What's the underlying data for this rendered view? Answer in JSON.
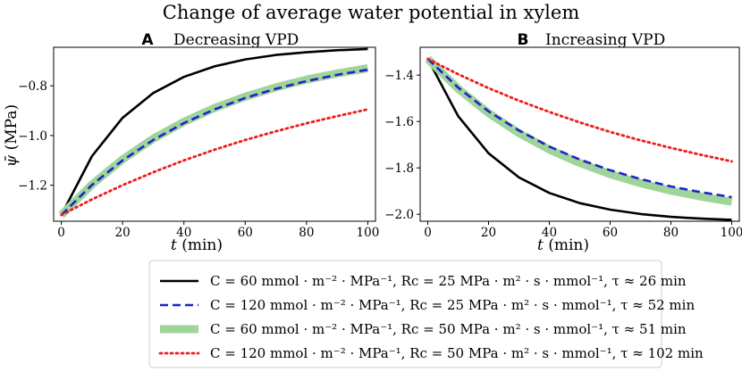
{
  "figure": {
    "title": "Change of average water potential in xylem"
  },
  "legend_entries": [
    {
      "id": "s1",
      "label": "C = 60 mmol · m⁻² · MPa⁻¹, Rc = 25 MPa · m² · s · mmol⁻¹, τ ≈ 26 min",
      "color": "#000000",
      "style": "solid"
    },
    {
      "id": "s2",
      "label": "C = 120 mmol · m⁻² · MPa⁻¹, Rc = 25 MPa · m² · s · mmol⁻¹, τ ≈ 52 min",
      "color": "#1f22c9",
      "style": "dashed"
    },
    {
      "id": "s3",
      "label": "C = 60 mmol · m⁻² · MPa⁻¹, Rc = 50 MPa · m² · s · mmol⁻¹, τ ≈ 51 min",
      "color": "#9fd49a",
      "style": "thick"
    },
    {
      "id": "s4",
      "label": "C = 120 mmol · m⁻² · MPa⁻¹, Rc = 50 MPa · m² · s · mmol⁻¹, τ ≈ 102 min",
      "color": "#ee1c1c",
      "style": "dotted"
    }
  ],
  "chart_data": [
    {
      "type": "line",
      "panel_letter": "A",
      "title": "Decreasing VPD",
      "xlabel": "t (min)",
      "ylabel": "ψ̄ (MPa)",
      "xlim": [
        -2.5,
        102.5
      ],
      "ylim": [
        -1.345,
        -0.645
      ],
      "xticks": [
        0,
        20,
        40,
        60,
        80,
        100
      ],
      "yticks": [
        -1.2,
        -1.0,
        -0.8
      ],
      "xtick_labels": [
        "0",
        "20",
        "40",
        "60",
        "80",
        "100"
      ],
      "ytick_labels": [
        "−1.2",
        "−1.0",
        "−0.8"
      ],
      "x": [
        0,
        10,
        20,
        30,
        40,
        50,
        60,
        70,
        80,
        90,
        100
      ],
      "series": [
        {
          "id": "s1",
          "name": "τ ≈ 26 min",
          "values": [
            -1.32,
            -1.083,
            -0.929,
            -0.829,
            -0.764,
            -0.722,
            -0.694,
            -0.676,
            -0.665,
            -0.657,
            -0.652
          ]
        },
        {
          "id": "s3",
          "name": "τ ≈ 51 min",
          "values": [
            -1.32,
            -1.197,
            -1.096,
            -1.013,
            -0.945,
            -0.889,
            -0.844,
            -0.806,
            -0.775,
            -0.75,
            -0.729
          ]
        },
        {
          "id": "s2",
          "name": "τ ≈ 52 min",
          "values": [
            -1.32,
            -1.199,
            -1.1,
            -1.018,
            -0.95,
            -0.895,
            -0.849,
            -0.812,
            -0.781,
            -0.756,
            -0.735
          ]
        },
        {
          "id": "s4",
          "name": "τ ≈ 102 min",
          "values": [
            -1.32,
            -1.257,
            -1.2,
            -1.148,
            -1.1,
            -1.057,
            -1.018,
            -0.983,
            -0.951,
            -0.922,
            -0.895
          ]
        }
      ]
    },
    {
      "type": "line",
      "panel_letter": "B",
      "title": "Increasing VPD",
      "xlabel": "t (min)",
      "ylabel": "",
      "xlim": [
        -2.5,
        102.5
      ],
      "ylim": [
        -2.03,
        -1.28
      ],
      "xticks": [
        0,
        20,
        40,
        60,
        80,
        100
      ],
      "yticks": [
        -2.0,
        -1.8,
        -1.6,
        -1.4
      ],
      "xtick_labels": [
        "0",
        "20",
        "40",
        "60",
        "80",
        "100"
      ],
      "ytick_labels": [
        "−2.0",
        "−1.8",
        "−1.6",
        "−1.4"
      ],
      "x": [
        0,
        10,
        20,
        30,
        40,
        50,
        60,
        70,
        80,
        90,
        100
      ],
      "series": [
        {
          "id": "s1",
          "name": "τ ≈ 26 min",
          "values": [
            -1.33,
            -1.577,
            -1.737,
            -1.841,
            -1.908,
            -1.952,
            -1.98,
            -1.999,
            -2.011,
            -2.019,
            -2.024
          ]
        },
        {
          "id": "s3",
          "name": "τ ≈ 51 min",
          "values": [
            -1.33,
            -1.459,
            -1.564,
            -1.65,
            -1.721,
            -1.779,
            -1.827,
            -1.866,
            -1.898,
            -1.924,
            -1.946
          ]
        },
        {
          "id": "s2",
          "name": "τ ≈ 52 min",
          "values": [
            -1.33,
            -1.454,
            -1.556,
            -1.639,
            -1.708,
            -1.764,
            -1.81,
            -1.848,
            -1.88,
            -1.905,
            -1.926
          ]
        },
        {
          "id": "s4",
          "name": "τ ≈ 102 min",
          "values": [
            -1.33,
            -1.396,
            -1.456,
            -1.51,
            -1.559,
            -1.604,
            -1.645,
            -1.681,
            -1.714,
            -1.744,
            -1.772
          ]
        }
      ]
    }
  ]
}
